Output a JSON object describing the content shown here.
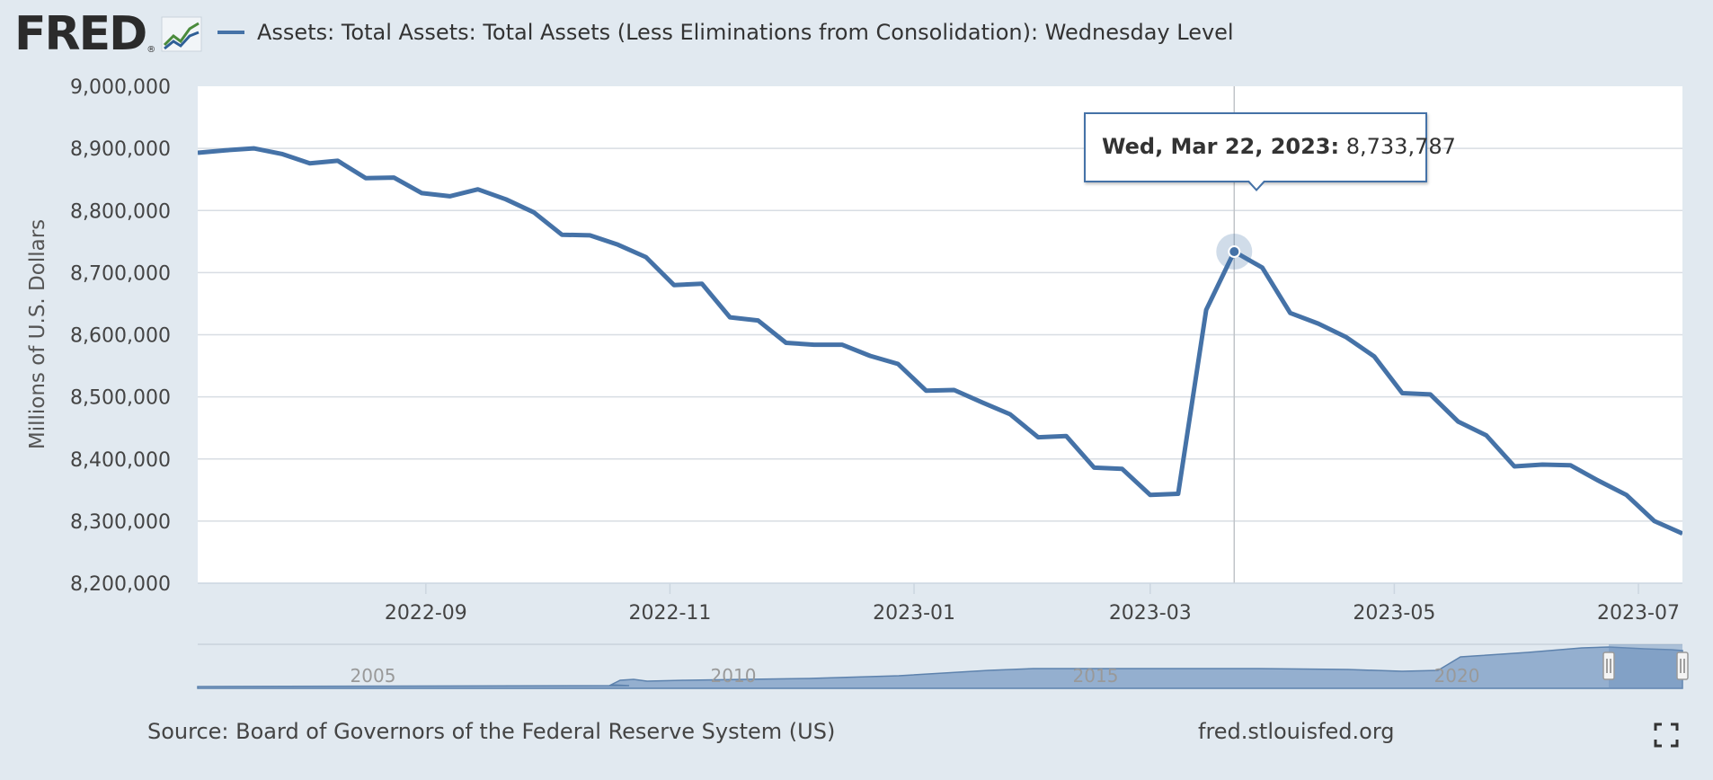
{
  "logo": {
    "text": "FRED",
    "reg": "®",
    "icon": "line-chart-icon"
  },
  "legend": {
    "label": "Assets: Total Assets: Total Assets (Less Eliminations from Consolidation): Wednesday Level",
    "color": "#4572a7"
  },
  "tooltip": {
    "date": "Wed, Mar 22, 2023:",
    "value": "8,733,787"
  },
  "footer": {
    "source": "Source: Board of Governors of the Federal Reserve System (US)",
    "site": "fred.stlouisfed.org",
    "fullscreen_icon": "fullscreen-icon"
  },
  "colors": {
    "series": "#4572a7",
    "background": "#e1e9f0",
    "plot": "#ffffff",
    "grid": "#d8dde3"
  },
  "chart_data": {
    "type": "line",
    "ylabel": "Millions of U.S. Dollars",
    "ylim": [
      8200000,
      9000000
    ],
    "y_ticks": [
      "9,000,000",
      "8,900,000",
      "8,800,000",
      "8,700,000",
      "8,600,000",
      "8,500,000",
      "8,400,000",
      "8,300,000",
      "8,200,000"
    ],
    "x_ticks": [
      "2022-09",
      "2022-11",
      "2023-01",
      "2023-03",
      "2023-05",
      "2023-07"
    ],
    "x_tick_dates": [
      "2022-09-01",
      "2022-11-01",
      "2023-01-01",
      "2023-03-01",
      "2023-05-01",
      "2023-07-01"
    ],
    "xlim": [
      "2022-07-06",
      "2023-07-12"
    ],
    "grid": true,
    "highlight": {
      "x": "2023-03-22",
      "y": 8733787
    },
    "series": [
      {
        "x": [
          "2022-07-06",
          "2022-07-13",
          "2022-07-20",
          "2022-07-27",
          "2022-08-03",
          "2022-08-10",
          "2022-08-17",
          "2022-08-24",
          "2022-08-31",
          "2022-09-07",
          "2022-09-14",
          "2022-09-21",
          "2022-09-28",
          "2022-10-05",
          "2022-10-12",
          "2022-10-19",
          "2022-10-26",
          "2022-11-02",
          "2022-11-09",
          "2022-11-16",
          "2022-11-23",
          "2022-11-30",
          "2022-12-07",
          "2022-12-14",
          "2022-12-21",
          "2022-12-28",
          "2023-01-04",
          "2023-01-11",
          "2023-01-18",
          "2023-01-25",
          "2023-02-01",
          "2023-02-08",
          "2023-02-15",
          "2023-02-22",
          "2023-03-01",
          "2023-03-08",
          "2023-03-15",
          "2023-03-22",
          "2023-03-29",
          "2023-04-05",
          "2023-04-12",
          "2023-04-19",
          "2023-04-26",
          "2023-05-03",
          "2023-05-10",
          "2023-05-17",
          "2023-05-24",
          "2023-05-31",
          "2023-06-07",
          "2023-06-14",
          "2023-06-21",
          "2023-06-28",
          "2023-07-05",
          "2023-07-12"
        ],
        "values": [
          8893000,
          8897000,
          8900000,
          8891000,
          8876000,
          8880000,
          8852000,
          8853000,
          8828000,
          8823000,
          8834000,
          8818000,
          8797000,
          8761000,
          8760000,
          8745000,
          8725000,
          8680000,
          8682000,
          8628000,
          8623000,
          8587000,
          8584000,
          8584000,
          8566000,
          8553000,
          8510000,
          8511000,
          8491000,
          8472000,
          8435000,
          8437000,
          8386000,
          8384000,
          8342000,
          8344000,
          8640000,
          8733787,
          8708000,
          8635000,
          8618000,
          8596000,
          8565000,
          8506000,
          8504000,
          8460000,
          8438000,
          8388000,
          8391000,
          8390000,
          8365000,
          8342000,
          8300000,
          8280000
        ]
      }
    ],
    "navigator": {
      "ticks": [
        "2005",
        "2010",
        "2015",
        "2020"
      ]
    }
  }
}
